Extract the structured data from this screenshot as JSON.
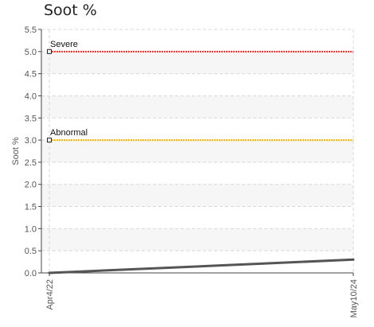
{
  "chart_data": {
    "type": "line",
    "title": "Soot %",
    "ylabel": "Soot %",
    "xlabel": "",
    "ylim": [
      0,
      5.5
    ],
    "y_ticks": [
      "0.0",
      "0.5",
      "1.0",
      "1.5",
      "2.0",
      "2.5",
      "3.0",
      "3.5",
      "4.0",
      "4.5",
      "5.0",
      "5.5"
    ],
    "x": [
      "Apr4/22",
      "May10/24"
    ],
    "series": [
      {
        "values": [
          0.0,
          0.3
        ],
        "color": "#555555"
      }
    ],
    "thresholds": [
      {
        "name": "Severe",
        "value": 5.0,
        "color": "#e8322a"
      },
      {
        "name": "Abnormal",
        "value": 3.0,
        "color": "#f2b705"
      }
    ],
    "grid": true
  }
}
